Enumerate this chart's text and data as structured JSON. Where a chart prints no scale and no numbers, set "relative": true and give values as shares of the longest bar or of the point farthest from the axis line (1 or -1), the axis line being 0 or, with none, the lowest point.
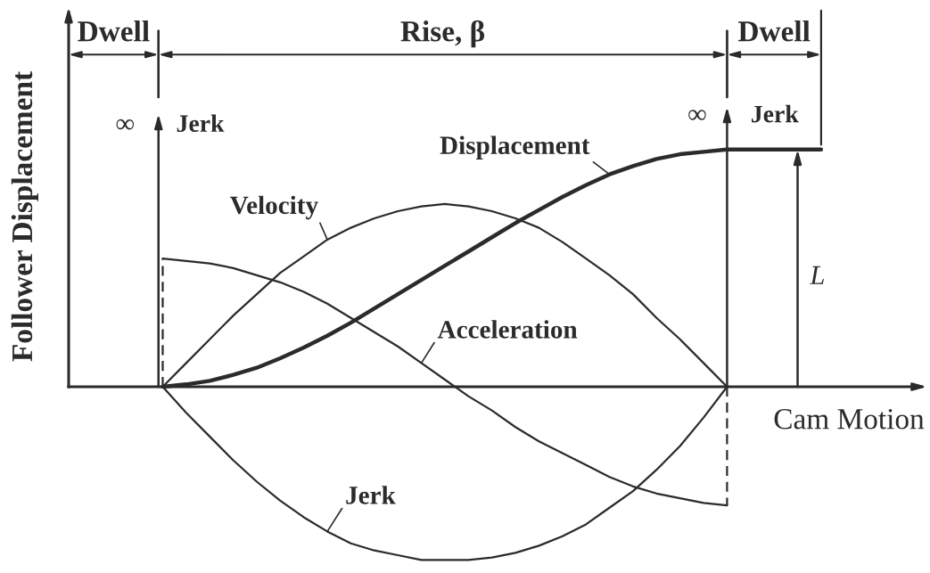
{
  "chart_data": {
    "type": "line",
    "relative": true,
    "xlabel": "Cam Motion",
    "ylabel": "Follower Displacement",
    "categories": [
      null,
      null,
      null,
      null,
      null,
      null,
      null,
      null,
      null,
      null,
      null,
      null,
      null,
      null,
      null,
      null,
      null,
      null,
      null,
      null,
      null,
      null,
      null,
      null,
      null,
      null,
      null,
      null,
      null,
      null,
      null,
      null,
      null
    ],
    "series": [
      {
        "name": "Displacement",
        "color": "#2b2b2b",
        "values": [
          null,
          null,
          null,
          null,
          0,
          0.01,
          0.025,
          0.05,
          0.08,
          0.12,
          0.165,
          0.215,
          0.27,
          0.33,
          0.39,
          0.45,
          0.51,
          0.57,
          0.63,
          0.69,
          0.745,
          0.8,
          0.85,
          0.895,
          0.93,
          0.96,
          0.98,
          0.99,
          1,
          1,
          1,
          1,
          1
        ]
      },
      {
        "name": "Velocity",
        "color": "#2b2b2b",
        "values": [
          0,
          0,
          0,
          0,
          0,
          0.1,
          0.2,
          0.3,
          0.39,
          0.48,
          0.55,
          0.62,
          0.67,
          0.71,
          0.74,
          0.76,
          0.77,
          0.76,
          0.74,
          0.71,
          0.67,
          0.61,
          0.54,
          0.47,
          0.39,
          0.29,
          0.2,
          0.1,
          0,
          0,
          0,
          0,
          0
        ]
      },
      {
        "name": "Acceleration",
        "color": "#2b2b2b",
        "values": [
          null,
          null,
          null,
          null,
          0.54,
          0.53,
          0.52,
          0.5,
          0.47,
          0.44,
          0.4,
          0.35,
          0.29,
          0.23,
          0.17,
          0.1,
          0.03,
          -0.04,
          -0.1,
          -0.17,
          -0.23,
          -0.28,
          -0.33,
          -0.38,
          -0.42,
          -0.45,
          -0.47,
          -0.49,
          -0.5,
          null,
          null,
          null,
          null
        ]
      },
      {
        "name": "Jerk",
        "color": "#2b2b2b",
        "values": [
          null,
          null,
          null,
          null,
          0,
          -0.11,
          -0.21,
          -0.31,
          -0.4,
          -0.48,
          -0.55,
          -0.61,
          -0.66,
          -0.69,
          -0.71,
          -0.73,
          -0.73,
          -0.73,
          -0.72,
          -0.7,
          -0.67,
          -0.63,
          -0.58,
          -0.51,
          -0.44,
          -0.35,
          -0.25,
          -0.13,
          0,
          null,
          null,
          null,
          null
        ]
      }
    ],
    "annotations": [
      "Dwell",
      "Rise, β",
      "Dwell",
      "∞",
      "Jerk",
      "∞",
      "Jerk",
      "L"
    ]
  }
}
